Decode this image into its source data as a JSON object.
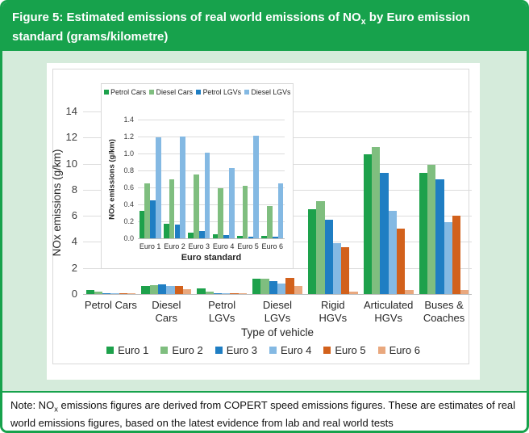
{
  "header": {
    "title_prefix": "Figure 5: Estimated emissions of real world emissions of NO",
    "title_sub": "x",
    "title_suffix": " by Euro emission standard (grams/kilometre)"
  },
  "note": {
    "prefix": "Note: NO",
    "sub": "x",
    "suffix": " emissions figures are derived from COPERT speed emissions figures. These are estimates of real world emissions figures, based on the latest evidence from lab and real world tests"
  },
  "colors": {
    "header_green": "#17A24C",
    "body_light_green": "#D5EBDB",
    "grid_gray": "#DCDCDC",
    "axis_gray": "#BFBFBF",
    "euro1": "#1DA14B",
    "euro2": "#7FBE7F",
    "euro3": "#1F7EC3",
    "euro4": "#84B9E3",
    "euro5": "#D2611C",
    "euro6": "#E9A87E"
  },
  "chart_data": [
    {
      "id": "main",
      "type": "bar",
      "title": "",
      "xlabel": "Type of vehicle",
      "ylabel": "NOx emissions (g/km)",
      "ylim": [
        0,
        14
      ],
      "ytick_step": 2,
      "ytick_decimals": 0,
      "grid": true,
      "legend_position": "bottom",
      "categories": [
        "Petrol Cars",
        "Diesel\nCars",
        "Petrol\nLGVs",
        "Diesel\nLGVs",
        "Rigid\nHGVs",
        "Articulated\nHGVs",
        "Buses &\nCoaches"
      ],
      "series": [
        {
          "name": "Euro 1",
          "color_key": "euro1",
          "values": [
            0.32,
            0.65,
            0.45,
            1.19,
            6.5,
            10.7,
            9.3
          ]
        },
        {
          "name": "Euro 2",
          "color_key": "euro2",
          "values": [
            0.17,
            0.7,
            0.16,
            1.2,
            7.1,
            11.3,
            9.9
          ]
        },
        {
          "name": "Euro 3",
          "color_key": "euro3",
          "values": [
            0.07,
            0.75,
            0.09,
            1.01,
            5.7,
            9.3,
            8.8
          ]
        },
        {
          "name": "Euro 4",
          "color_key": "euro4",
          "values": [
            0.05,
            0.59,
            0.04,
            0.83,
            3.9,
            6.4,
            5.5
          ]
        },
        {
          "name": "Euro 5",
          "color_key": "euro5",
          "values": [
            0.03,
            0.62,
            0.02,
            1.21,
            3.6,
            5.0,
            6.0
          ]
        },
        {
          "name": "Euro 6",
          "color_key": "euro6",
          "values": [
            0.03,
            0.38,
            0.02,
            0.65,
            0.2,
            0.3,
            0.3
          ]
        }
      ]
    },
    {
      "id": "inset",
      "type": "bar",
      "title": "",
      "xlabel": "Euro standard",
      "ylabel": "NOx emissions (g/km)",
      "ylim": [
        0,
        1.4
      ],
      "ytick_step": 0.2,
      "ytick_decimals": 1,
      "grid": true,
      "legend_position": "top",
      "categories": [
        "Euro 1",
        "Euro 2",
        "Euro 3",
        "Euro 4",
        "Euro 5",
        "Euro 6"
      ],
      "series": [
        {
          "name": "Petrol Cars",
          "color_key": "euro1",
          "values": [
            0.32,
            0.17,
            0.07,
            0.05,
            0.03,
            0.03
          ]
        },
        {
          "name": "Diesel Cars",
          "color_key": "euro2",
          "values": [
            0.65,
            0.7,
            0.75,
            0.59,
            0.62,
            0.38
          ]
        },
        {
          "name": "Petrol LGVs",
          "color_key": "euro3",
          "values": [
            0.45,
            0.16,
            0.09,
            0.04,
            0.02,
            0.02
          ]
        },
        {
          "name": "Diesel LGVs",
          "color_key": "euro4",
          "values": [
            1.19,
            1.2,
            1.01,
            0.83,
            1.21,
            0.65
          ]
        }
      ]
    }
  ]
}
